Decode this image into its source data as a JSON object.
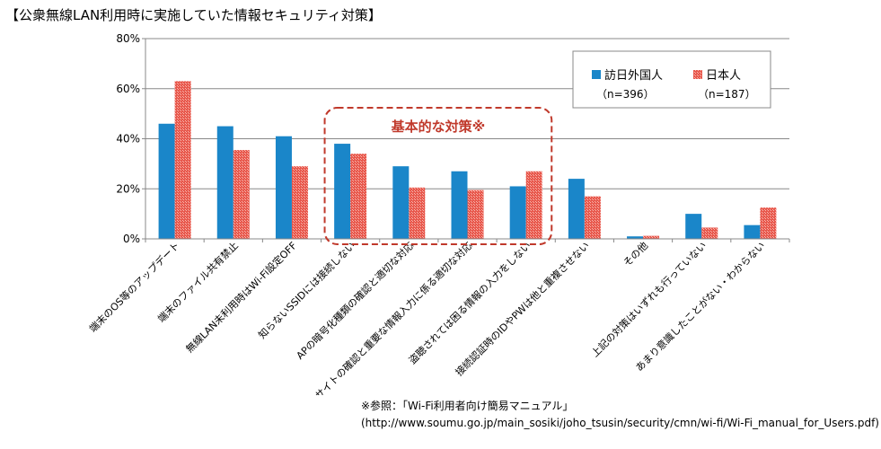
{
  "title": "【公衆無線LAN利用時に実施していた情報セキュリティ対策】",
  "source": {
    "line1": "※参照：「Wi-Fi利用者向け簡易マニュアル」",
    "line2": "(http://www.soumu.go.jp/main_sosiki/joho_tsusin/security/cmn/wi-fi/Wi-Fi_manual_for_Users.pdf)"
  },
  "callout": {
    "label": "基本的な対策※",
    "color": "#c0392b",
    "from_category": 3,
    "to_category": 6
  },
  "colors": {
    "series1": "#1a86c9",
    "series2": "#e8584c",
    "grid": "#888888",
    "axis": "#888888"
  },
  "chart_data": {
    "type": "bar",
    "ylim": [
      0,
      80
    ],
    "yticks": [
      0,
      20,
      40,
      60,
      80
    ],
    "ytick_labels": [
      "0%",
      "20%",
      "40%",
      "60%",
      "80%"
    ],
    "grid": true,
    "legend_position": "top-right",
    "categories": [
      "端末のOS等のアップデート",
      "端末のファイル共有禁止",
      "無線LAN未利用時はWi-Fi設定OFF",
      "知らないSSIDには接続しない",
      "APの暗号化種類の確認と適切な対応",
      "SSLサイトの確認と重要な情報入力に係る適切な対応",
      "盗聴されては困る情報の入力をしない",
      "接続認証時のIDやPWは他と重複させない",
      "その他",
      "上記の対策はいずれも行っていない",
      "あまり意識したことがない・わからない"
    ],
    "series": [
      {
        "name": "訪日外国人",
        "n_label": "（n=396）",
        "values": [
          46,
          45,
          41,
          38,
          29,
          27,
          21,
          24,
          1,
          10,
          5.5
        ]
      },
      {
        "name": "日本人",
        "n_label": "（n=187）",
        "values": [
          63,
          35.5,
          29,
          34,
          20.5,
          19.5,
          27,
          17,
          1.2,
          4.5,
          12.5
        ]
      }
    ]
  }
}
